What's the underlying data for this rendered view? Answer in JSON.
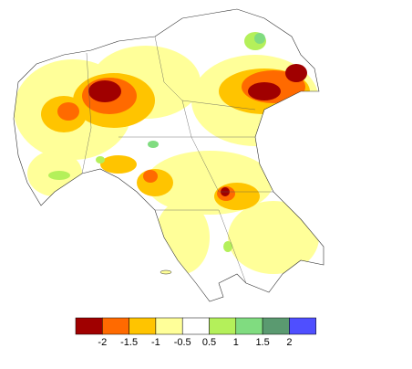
{
  "legend": {
    "colors": [
      "#a00000",
      "#ff6a00",
      "#ffc400",
      "#ffff99",
      "#ffffff",
      "#b4f05a",
      "#80dc80",
      "#5a9a70",
      "#4f4fff"
    ],
    "ticks": [
      -2,
      -1.5,
      -1,
      -0.5,
      0.5,
      1,
      1.5,
      2
    ]
  }
}
